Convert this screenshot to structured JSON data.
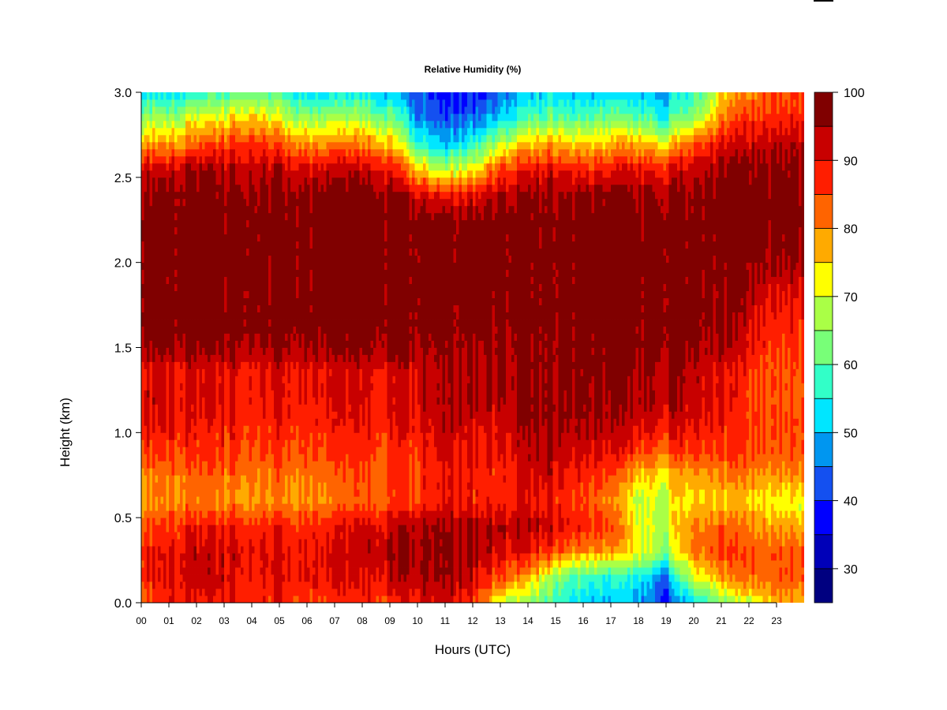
{
  "chart_data": {
    "type": "heatmap",
    "title": "Relative Humidity (%)",
    "xlabel": "Hours (UTC)",
    "ylabel": "Height (km)",
    "xlim": [
      0,
      24
    ],
    "ylim": [
      0,
      3
    ],
    "x_ticks": [
      "00",
      "01",
      "02",
      "03",
      "04",
      "05",
      "06",
      "07",
      "08",
      "09",
      "10",
      "11",
      "12",
      "13",
      "14",
      "15",
      "16",
      "17",
      "18",
      "19",
      "20",
      "21",
      "22",
      "23"
    ],
    "y_ticks": [
      "0.0",
      "0.5",
      "1.0",
      "1.5",
      "2.0",
      "2.5",
      "3.0"
    ],
    "colorbar": {
      "label_ticks": [
        "30",
        "40",
        "50",
        "60",
        "70",
        "80",
        "90",
        "100"
      ],
      "levels": [
        25,
        30,
        35,
        40,
        45,
        50,
        55,
        60,
        65,
        70,
        75,
        80,
        85,
        90,
        95,
        100
      ],
      "colors": [
        "#000080",
        "#0000b8",
        "#0000ff",
        "#1450f0",
        "#0096f0",
        "#00e6ff",
        "#32ffc8",
        "#78ff78",
        "#aaff46",
        "#ffff00",
        "#ffaa00",
        "#ff6400",
        "#ff1e00",
        "#c80000",
        "#800000"
      ]
    },
    "heights_km": [
      0.0,
      0.15,
      0.3,
      0.45,
      0.6,
      0.75,
      0.9,
      1.05,
      1.2,
      1.35,
      1.5,
      1.65,
      1.8,
      1.95,
      2.1,
      2.25,
      2.4,
      2.55,
      2.7,
      2.85,
      3.0
    ],
    "hours": [
      0,
      1,
      2,
      3,
      4,
      5,
      6,
      7,
      8,
      9,
      10,
      11,
      12,
      13,
      14,
      15,
      16,
      17,
      18,
      19,
      20,
      21,
      22,
      23,
      24
    ],
    "values": [
      [
        82,
        88,
        88,
        88,
        88,
        88,
        86,
        86,
        86,
        86,
        90,
        92,
        88,
        70,
        65,
        58,
        52,
        50,
        48,
        38,
        55,
        62,
        70,
        78,
        78
      ],
      [
        88,
        90,
        92,
        92,
        90,
        90,
        90,
        90,
        90,
        92,
        95,
        96,
        92,
        85,
        78,
        65,
        58,
        55,
        55,
        45,
        72,
        78,
        82,
        84,
        84
      ],
      [
        88,
        90,
        92,
        92,
        92,
        90,
        90,
        90,
        92,
        94,
        96,
        97,
        95,
        92,
        90,
        85,
        80,
        78,
        72,
        65,
        82,
        85,
        84,
        84,
        84
      ],
      [
        84,
        86,
        88,
        88,
        88,
        88,
        88,
        88,
        90,
        92,
        95,
        96,
        95,
        94,
        94,
        92,
        88,
        85,
        72,
        68,
        82,
        82,
        80,
        78,
        78
      ],
      [
        78,
        80,
        80,
        80,
        80,
        80,
        80,
        80,
        82,
        84,
        86,
        90,
        88,
        88,
        90,
        88,
        85,
        80,
        68,
        70,
        76,
        75,
        75,
        72,
        72
      ],
      [
        80,
        82,
        82,
        82,
        82,
        82,
        82,
        82,
        84,
        85,
        86,
        90,
        88,
        88,
        92,
        92,
        88,
        85,
        76,
        74,
        80,
        80,
        80,
        80,
        80
      ],
      [
        85,
        86,
        86,
        86,
        86,
        86,
        86,
        86,
        86,
        86,
        88,
        92,
        90,
        90,
        94,
        94,
        92,
        90,
        86,
        84,
        88,
        86,
        86,
        84,
        84
      ],
      [
        90,
        90,
        88,
        88,
        88,
        88,
        88,
        88,
        88,
        88,
        90,
        94,
        92,
        92,
        96,
        96,
        95,
        94,
        92,
        90,
        92,
        88,
        86,
        85,
        85
      ],
      [
        92,
        92,
        90,
        90,
        90,
        90,
        90,
        90,
        90,
        90,
        92,
        95,
        94,
        95,
        97,
        97,
        97,
        95,
        94,
        94,
        94,
        90,
        86,
        84,
        84
      ],
      [
        90,
        90,
        90,
        90,
        90,
        90,
        90,
        90,
        90,
        90,
        92,
        95,
        94,
        95,
        97,
        97,
        97,
        96,
        95,
        95,
        95,
        90,
        86,
        84,
        84
      ],
      [
        96,
        96,
        96,
        96,
        96,
        96,
        96,
        96,
        96,
        96,
        96,
        97,
        96,
        96,
        97,
        97,
        97,
        97,
        97,
        97,
        97,
        94,
        90,
        86,
        86
      ],
      [
        98,
        98,
        98,
        98,
        98,
        98,
        98,
        98,
        98,
        98,
        98,
        98,
        98,
        98,
        98,
        98,
        98,
        98,
        98,
        98,
        98,
        96,
        92,
        88,
        88
      ],
      [
        98,
        98,
        98,
        98,
        98,
        98,
        98,
        98,
        98,
        98,
        98,
        98,
        98,
        98,
        98,
        98,
        98,
        98,
        98,
        98,
        98,
        96,
        94,
        90,
        90
      ],
      [
        98,
        98,
        98,
        98,
        98,
        98,
        98,
        98,
        98,
        98,
        98,
        98,
        98,
        98,
        98,
        98,
        98,
        98,
        98,
        98,
        98,
        97,
        96,
        95,
        95
      ],
      [
        98,
        98,
        98,
        98,
        98,
        98,
        98,
        98,
        98,
        98,
        98,
        98,
        98,
        98,
        98,
        98,
        98,
        98,
        98,
        98,
        98,
        98,
        98,
        97,
        97
      ],
      [
        98,
        98,
        98,
        98,
        98,
        98,
        98,
        98,
        98,
        98,
        98,
        98,
        98,
        98,
        98,
        98,
        98,
        98,
        98,
        98,
        98,
        98,
        98,
        98,
        98
      ],
      [
        97,
        97,
        97,
        97,
        97,
        97,
        97,
        97,
        97,
        97,
        92,
        88,
        90,
        95,
        96,
        96,
        96,
        96,
        96,
        95,
        97,
        98,
        98,
        98,
        98
      ],
      [
        92,
        92,
        94,
        94,
        94,
        93,
        92,
        92,
        92,
        90,
        75,
        68,
        72,
        86,
        90,
        90,
        88,
        88,
        90,
        88,
        94,
        96,
        97,
        97,
        97
      ],
      [
        78,
        78,
        82,
        85,
        88,
        84,
        80,
        80,
        80,
        76,
        58,
        50,
        56,
        68,
        76,
        78,
        75,
        76,
        78,
        72,
        84,
        90,
        92,
        94,
        94
      ],
      [
        66,
        66,
        70,
        72,
        78,
        70,
        66,
        66,
        66,
        62,
        48,
        42,
        44,
        52,
        60,
        62,
        60,
        62,
        60,
        56,
        66,
        80,
        86,
        88,
        88
      ],
      [
        52,
        52,
        56,
        58,
        62,
        58,
        52,
        52,
        52,
        50,
        42,
        38,
        38,
        44,
        50,
        52,
        50,
        52,
        50,
        48,
        58,
        72,
        80,
        84,
        84
      ]
    ]
  }
}
